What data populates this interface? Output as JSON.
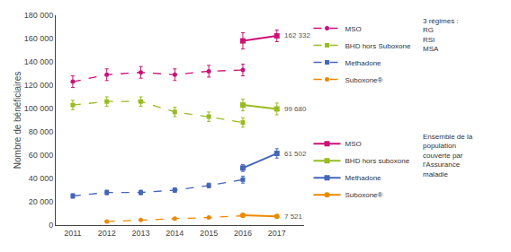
{
  "chart_data": {
    "type": "line",
    "x": [
      2011,
      2012,
      2013,
      2014,
      2015,
      2016,
      2017
    ],
    "xlim": [
      2010.5,
      2017.8
    ],
    "xticks": [
      2011,
      2012,
      2013,
      2014,
      2015,
      2016,
      2017
    ],
    "ylabel": "Nombre de bénéficiaires",
    "ylim": [
      0,
      180000
    ],
    "yticks": [
      0,
      {
        "value": 20000,
        "label": "20 000"
      },
      {
        "value": 40000,
        "label": "40 000"
      },
      {
        "value": 60000,
        "label": "60 000"
      },
      {
        "value": 80000,
        "label": "80 000"
      },
      {
        "value": 100000,
        "label": "100 000"
      },
      {
        "value": 120000,
        "label": "120 000"
      },
      {
        "value": 140000,
        "label": "140 000"
      },
      {
        "value": 160000,
        "label": "160 000"
      },
      {
        "value": 180000,
        "label": "180 000"
      }
    ],
    "grid": false,
    "legend_titles": [
      "3 régimes :\nRG\nRSI\nMSA",
      "Ensemble de la\npopulation\ncouverte par\nl'Assurance\nmaladie"
    ],
    "series": [
      {
        "name": "MSO",
        "color": "#cc1177",
        "marker": "circle",
        "line_style": "dashed",
        "values": [
          123000,
          129000,
          131000,
          129000,
          132000,
          133000,
          null
        ],
        "errors": [
          5000,
          5000,
          5000,
          5000,
          5000,
          5000,
          null
        ]
      },
      {
        "name": "BHD hors Suboxone",
        "color": "#99bb22",
        "marker": "square",
        "line_style": "dashed",
        "values": [
          103000,
          106000,
          106000,
          97000,
          93000,
          88000,
          null
        ],
        "errors": [
          4000,
          4000,
          4000,
          4000,
          4000,
          4000,
          null
        ]
      },
      {
        "name": "Methadone",
        "color": "#4466bb",
        "marker": "square",
        "line_style": "dashed",
        "values": [
          25000,
          28000,
          28000,
          30000,
          34000,
          39000,
          null
        ],
        "errors": [
          2000,
          2000,
          2000,
          2000,
          2000,
          3000,
          null
        ]
      },
      {
        "name": "Suboxone®",
        "color": "#ee8800",
        "marker": "circle",
        "line_style": "dashed",
        "values": [
          null,
          3000,
          4500,
          5500,
          6500,
          8000,
          null
        ],
        "errors": [
          null,
          500,
          500,
          500,
          500,
          700,
          null
        ]
      },
      {
        "name": "MSO",
        "color": "#cc1177",
        "marker": "square",
        "line_style": "solid",
        "values": [
          null,
          null,
          null,
          null,
          null,
          158000,
          162332
        ],
        "errors": [
          null,
          null,
          null,
          null,
          null,
          7000,
          5000
        ]
      },
      {
        "name": "BHD hors suboxone",
        "color": "#99bb22",
        "marker": "square",
        "line_style": "solid",
        "values": [
          null,
          null,
          null,
          null,
          null,
          103000,
          99680
        ],
        "errors": [
          null,
          null,
          null,
          null,
          null,
          5000,
          5000
        ]
      },
      {
        "name": "Methadone",
        "color": "#4466bb",
        "marker": "square",
        "line_style": "solid",
        "values": [
          null,
          null,
          null,
          null,
          null,
          49000,
          61502
        ],
        "errors": [
          null,
          null,
          null,
          null,
          null,
          3000,
          4000
        ]
      },
      {
        "name": "Suboxone®",
        "color": "#ee8800",
        "marker": "circle",
        "line_style": "solid",
        "values": [
          null,
          null,
          null,
          null,
          null,
          8500,
          7521
        ],
        "errors": [
          null,
          null,
          null,
          null,
          null,
          700,
          500
        ]
      }
    ],
    "annotations": [
      {
        "text": "162 332",
        "x": 2017,
        "y": 162332
      },
      {
        "text": "99 680",
        "x": 2017,
        "y": 99680
      },
      {
        "text": "61 502",
        "x": 2017,
        "y": 61502
      },
      {
        "text": "7 521",
        "x": 2017,
        "y": 7521
      }
    ]
  }
}
